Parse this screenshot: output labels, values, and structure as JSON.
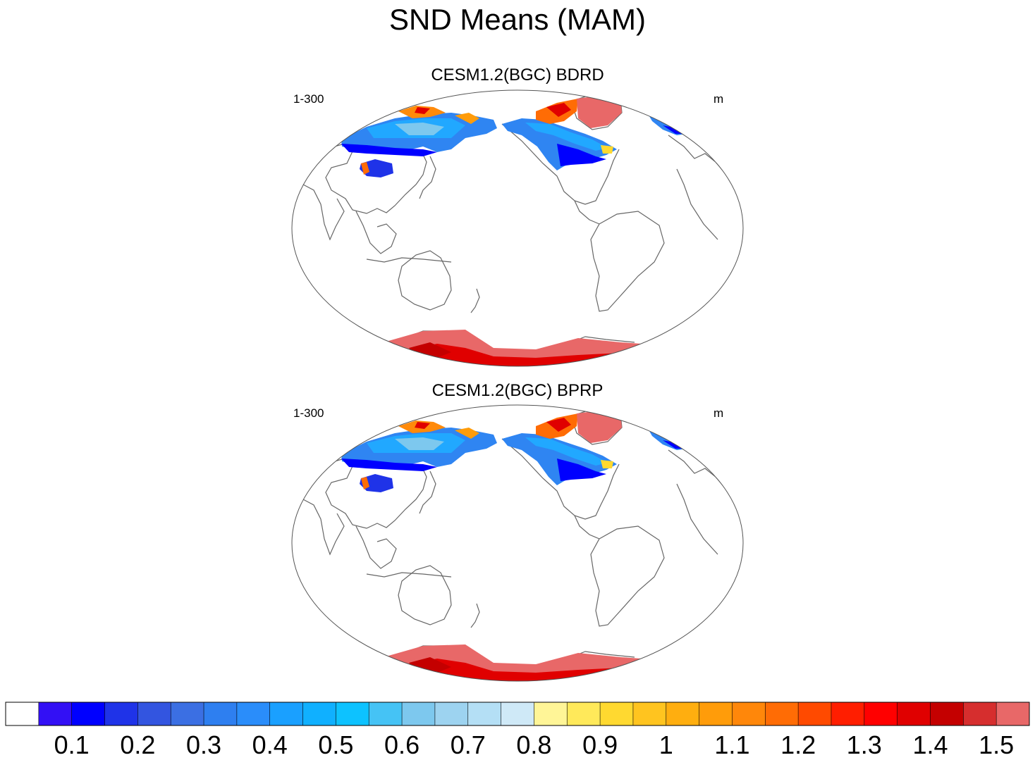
{
  "figure": {
    "title": "SND Means (MAM)"
  },
  "panels": [
    {
      "title": "CESM1.2(BGC) BDRD",
      "left_label": "1-300",
      "right_label": "m"
    },
    {
      "title": "CESM1.2(BGC) BPRP",
      "left_label": "1-300",
      "right_label": "m"
    }
  ],
  "colorbar": {
    "colors": [
      "#ffffff",
      "#3310f5",
      "#0000ff",
      "#1f33e8",
      "#3355e0",
      "#3b6fe3",
      "#2e7ff0",
      "#2a8dfa",
      "#1aa0ff",
      "#10b0ff",
      "#0dc2ff",
      "#45c3f5",
      "#7dc8ee",
      "#9dd3f0",
      "#b4dff5",
      "#cfe9f7",
      "#fff597",
      "#ffe95a",
      "#ffd930",
      "#ffc41f",
      "#ffae0f",
      "#ff9c0a",
      "#ff870a",
      "#ff6c05",
      "#ff4a00",
      "#ff1e00",
      "#ff0000",
      "#e00000",
      "#c40000",
      "#d62e2e",
      "#e86868"
    ],
    "tick_labels": [
      "0.1",
      "0.2",
      "0.3",
      "0.4",
      "0.5",
      "0.6",
      "0.7",
      "0.8",
      "0.9",
      "1",
      "1.1",
      "1.2",
      "1.3",
      "1.4",
      "1.5"
    ],
    "tick_values": [
      0.1,
      0.2,
      0.3,
      0.4,
      0.5,
      0.6,
      0.7,
      0.8,
      0.9,
      1.0,
      1.1,
      1.2,
      1.3,
      1.4,
      1.5
    ]
  }
}
